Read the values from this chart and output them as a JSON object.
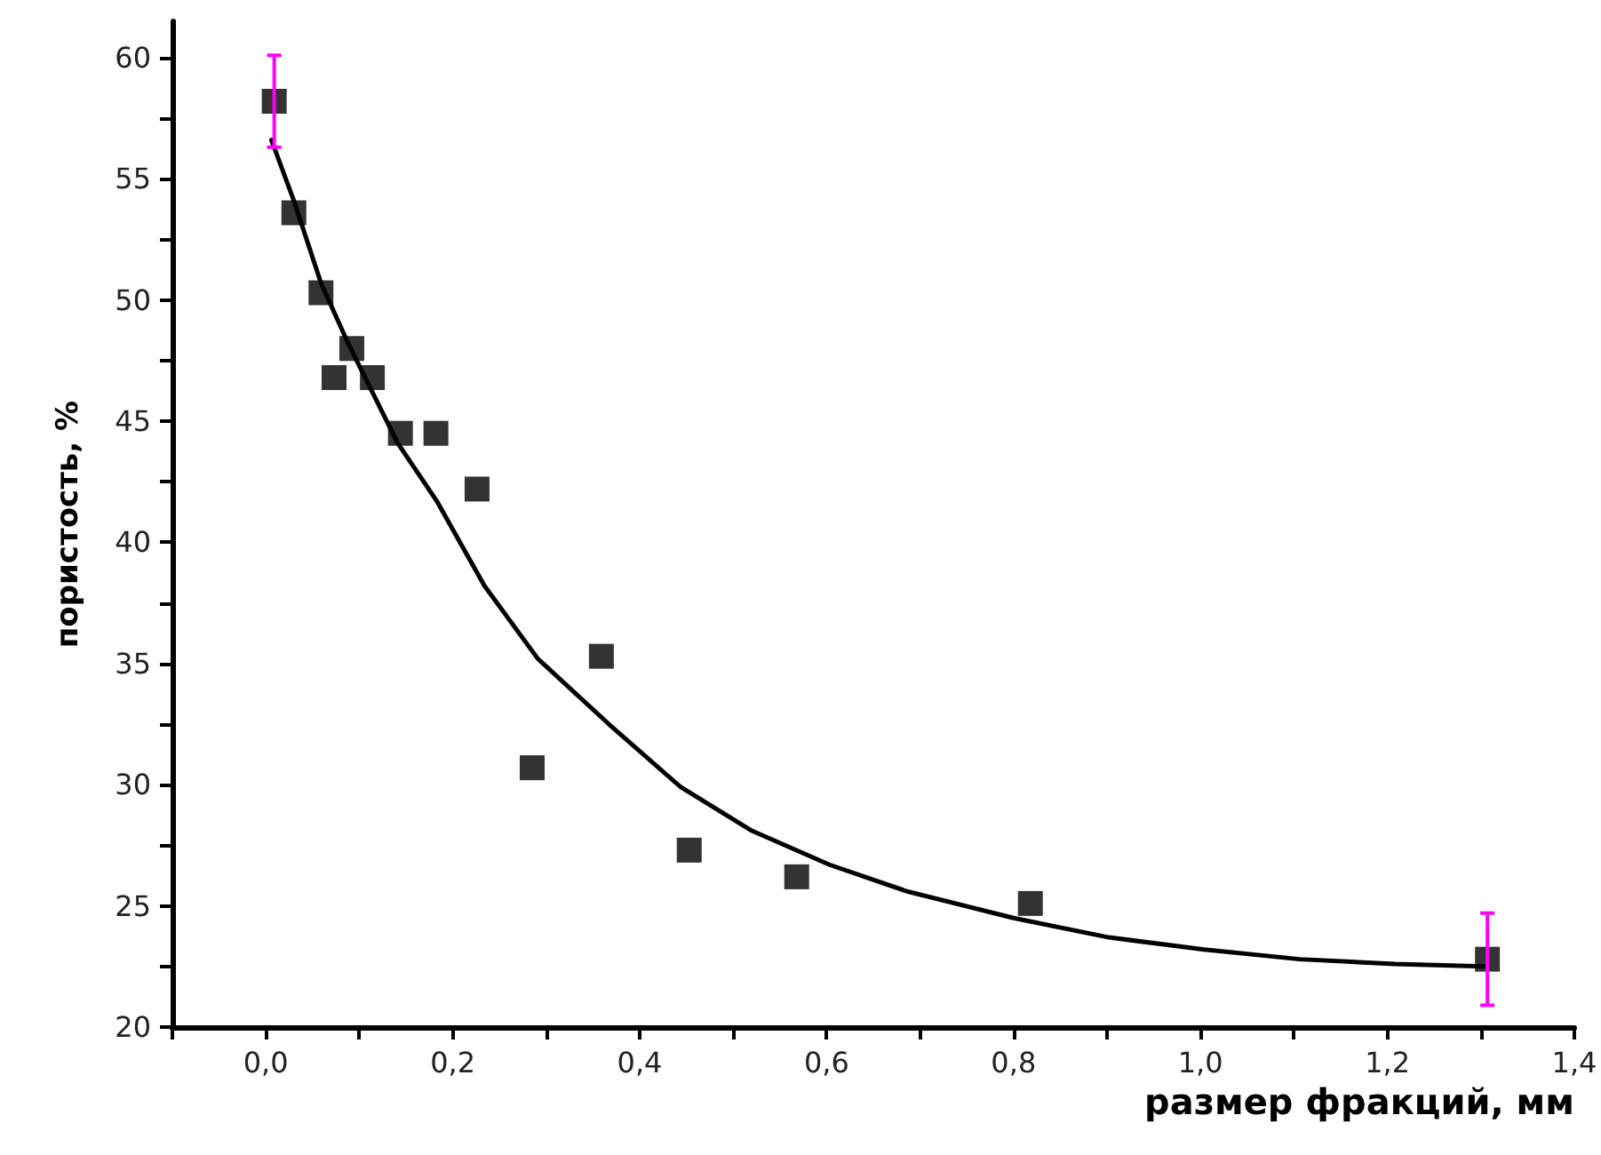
{
  "chart_data": {
    "type": "scatter",
    "xlabel": "размер фракций, мм",
    "ylabel": "пористость, %",
    "xlim": [
      -0.1,
      1.4
    ],
    "xticks": [
      {
        "value": -0.1,
        "label": null
      },
      {
        "value": 0,
        "label": "0,0"
      },
      {
        "value": 0.1,
        "label": null
      },
      {
        "value": 0.2,
        "label": "0,2"
      },
      {
        "value": 0.3,
        "label": null
      },
      {
        "value": 0.4,
        "label": "0,4"
      },
      {
        "value": 0.5,
        "label": null
      },
      {
        "value": 0.6,
        "label": "0,6"
      },
      {
        "value": 0.7,
        "label": null
      },
      {
        "value": 0.8,
        "label": "0,8"
      },
      {
        "value": 0.9,
        "label": null
      },
      {
        "value": 1.0,
        "label": "1,0"
      },
      {
        "value": 1.1,
        "label": null
      },
      {
        "value": 1.2,
        "label": "1,2"
      },
      {
        "value": 1.3,
        "label": null
      },
      {
        "value": 1.4,
        "label": "1,4"
      }
    ],
    "ylim": [
      20,
      61.5
    ],
    "yticks": [
      20,
      {
        "value": 22.5,
        "label": null
      },
      25,
      {
        "value": 27.5,
        "label": null
      },
      30,
      {
        "value": 32.5,
        "label": null
      },
      35,
      {
        "value": 37.5,
        "label": null
      },
      40,
      {
        "value": 42.5,
        "label": null
      },
      45,
      {
        "value": 47.5,
        "label": null
      },
      50,
      {
        "value": 52.5,
        "label": null
      },
      55,
      {
        "value": 57.5,
        "label": null
      },
      60
    ],
    "grid": false,
    "series": [
      {
        "color": "#000000",
        "marker": "square",
        "x": [
          0.009,
          0.03,
          0.059,
          0.073,
          0.092,
          0.114,
          0.144,
          0.182,
          0.226,
          0.285,
          0.359,
          0.453,
          0.568,
          0.818,
          1.307
        ],
        "values": [
          58.2,
          53.6,
          50.3,
          46.8,
          48.0,
          46.8,
          44.5,
          44.5,
          42.2,
          30.7,
          35.3,
          27.3,
          26.2,
          25.1,
          22.8
        ],
        "errors": [
          1.9,
          null,
          null,
          null,
          null,
          null,
          null,
          null,
          null,
          null,
          null,
          null,
          null,
          null,
          1.9
        ]
      },
      {
        "type": "line",
        "color": "#000000",
        "marker": "none",
        "line_style": "solid",
        "x": [
          0.006,
          0.03,
          0.059,
          0.087,
          0.141,
          0.183,
          0.234,
          0.291,
          0.367,
          0.444,
          0.52,
          0.603,
          0.686,
          0.8,
          0.902,
          1.004,
          1.106,
          1.208,
          1.303
        ],
        "values": [
          56.6,
          54.1,
          50.7,
          48.3,
          44.1,
          41.7,
          38.2,
          35.2,
          32.5,
          29.9,
          28.1,
          26.7,
          25.6,
          24.5,
          23.7,
          23.2,
          22.8,
          22.6,
          22.5
        ]
      }
    ]
  }
}
